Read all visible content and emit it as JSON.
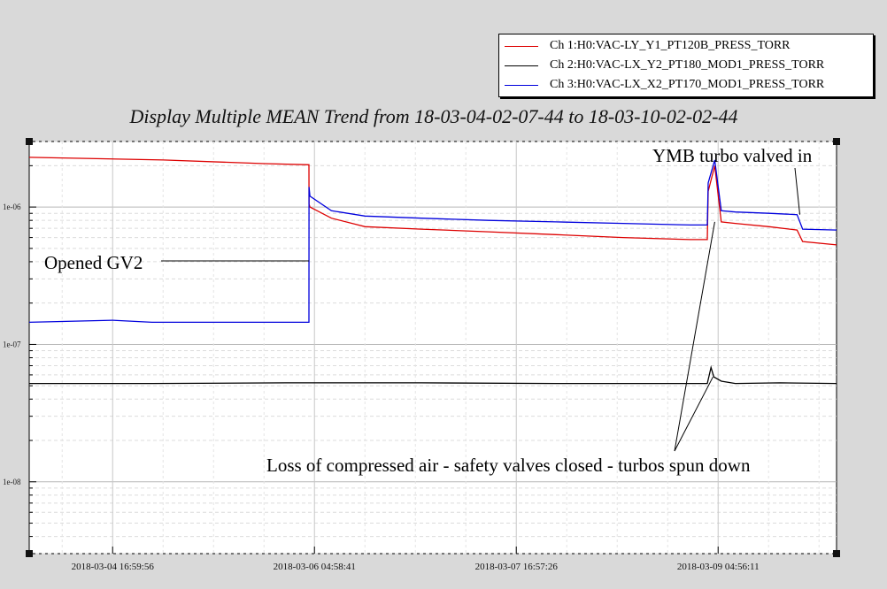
{
  "chart_data": {
    "type": "line",
    "title": "Display Multiple MEAN Trend from 18-03-04-02-07-44 to 18-03-10-02-02-44",
    "xlabel": "",
    "ylabel": "",
    "y_scale": "log",
    "ylim": [
      3e-09,
      3e-06
    ],
    "xlim": [
      "2018-03-04 02:07:44",
      "2018-03-10 02:02:44"
    ],
    "y_tick_labels": [
      "1e-06",
      "1e-07",
      "1e-08"
    ],
    "y_tick_values": [
      1e-06,
      1e-07,
      1e-08
    ],
    "x_tick_labels": [
      "2018-03-04 16:59:56",
      "2018-03-06 04:58:41",
      "2018-03-07 16:57:26",
      "2018-03-09 04:56:11"
    ],
    "x_tick_values": [
      "2018-03-04 16:59:56",
      "2018-03-06 04:58:41",
      "2018-03-07 16:57:26",
      "2018-03-09 04:56:11"
    ],
    "grid": true,
    "legend_position": "top-right",
    "series": [
      {
        "name": "Ch 1:H0:VAC-LY_Y1_PT120B_PRESS_TORR",
        "color": "#dd0000",
        "x": [
          "2018-03-04 02:07:44",
          "2018-03-05 02:00:00",
          "2018-03-05 20:00:00",
          "2018-03-06 04:00:00",
          "2018-03-06 04:01:00",
          "2018-03-06 04:10:00",
          "2018-03-06 08:00:00",
          "2018-03-06 14:00:00",
          "2018-03-07 00:00:00",
          "2018-03-07 12:00:00",
          "2018-03-08 00:00:00",
          "2018-03-08 12:00:00",
          "2018-03-09 00:00:00",
          "2018-03-09 03:00:00",
          "2018-03-09 03:10:00",
          "2018-03-09 04:20:00",
          "2018-03-09 05:30:00",
          "2018-03-09 08:00:00",
          "2018-03-09 14:00:00",
          "2018-03-09 19:00:00",
          "2018-03-09 20:00:00",
          "2018-03-10 02:02:44"
        ],
        "y": [
          2.3e-06,
          2.2e-06,
          2.07e-06,
          2.03e-06,
          1.05e-06,
          1e-06,
          8.3e-07,
          7.2e-07,
          6.9e-07,
          6.6e-07,
          6.3e-07,
          6e-07,
          5.8e-07,
          5.8e-07,
          1.3e-06,
          2e-06,
          7.8e-07,
          7.6e-07,
          7.2e-07,
          6.8e-07,
          5.6e-07,
          5.3e-07
        ]
      },
      {
        "name": "Ch 2:H0:VAC-LX_Y2_PT180_MOD1_PRESS_TORR",
        "color": "#000000",
        "x": [
          "2018-03-04 02:07:44",
          "2018-03-05 00:00:00",
          "2018-03-06 00:00:00",
          "2018-03-07 00:00:00",
          "2018-03-08 00:00:00",
          "2018-03-09 03:00:00",
          "2018-03-09 03:40:00",
          "2018-03-09 04:10:00",
          "2018-03-09 05:30:00",
          "2018-03-09 08:00:00",
          "2018-03-09 16:00:00",
          "2018-03-10 02:02:44"
        ],
        "y": [
          5.2e-08,
          5.2e-08,
          5.25e-08,
          5.25e-08,
          5.2e-08,
          5.2e-08,
          6.8e-08,
          5.8e-08,
          5.4e-08,
          5.2e-08,
          5.25e-08,
          5.2e-08
        ]
      },
      {
        "name": "Ch 3:H0:VAC-LX_X2_PT170_MOD1_PRESS_TORR",
        "color": "#0000dd",
        "x": [
          "2018-03-04 02:07:44",
          "2018-03-04 17:00:00",
          "2018-03-05 00:00:00",
          "2018-03-06 04:00:00",
          "2018-03-06 04:01:00",
          "2018-03-06 04:10:00",
          "2018-03-06 08:00:00",
          "2018-03-06 14:00:00",
          "2018-03-07 00:00:00",
          "2018-03-07 12:00:00",
          "2018-03-08 00:00:00",
          "2018-03-08 12:00:00",
          "2018-03-09 00:00:00",
          "2018-03-09 03:00:00",
          "2018-03-09 03:10:00",
          "2018-03-09 04:20:00",
          "2018-03-09 05:30:00",
          "2018-03-09 08:00:00",
          "2018-03-09 14:00:00",
          "2018-03-09 19:00:00",
          "2018-03-09 20:00:00",
          "2018-03-10 02:02:44"
        ],
        "y": [
          1.45e-07,
          1.5e-07,
          1.45e-07,
          1.45e-07,
          1.4e-06,
          1.2e-06,
          9.4e-07,
          8.6e-07,
          8.3e-07,
          8e-07,
          7.8e-07,
          7.6e-07,
          7.4e-07,
          7.4e-07,
          1.5e-06,
          2.2e-06,
          9.4e-07,
          9.2e-07,
          9e-07,
          8.8e-07,
          6.9e-07,
          6.8e-07
        ]
      }
    ],
    "annotations": [
      {
        "text": "Opened GV2"
      },
      {
        "text": "YMB turbo valved in"
      },
      {
        "text": "Loss of compressed air - safety valves closed - turbos spun down"
      }
    ]
  }
}
